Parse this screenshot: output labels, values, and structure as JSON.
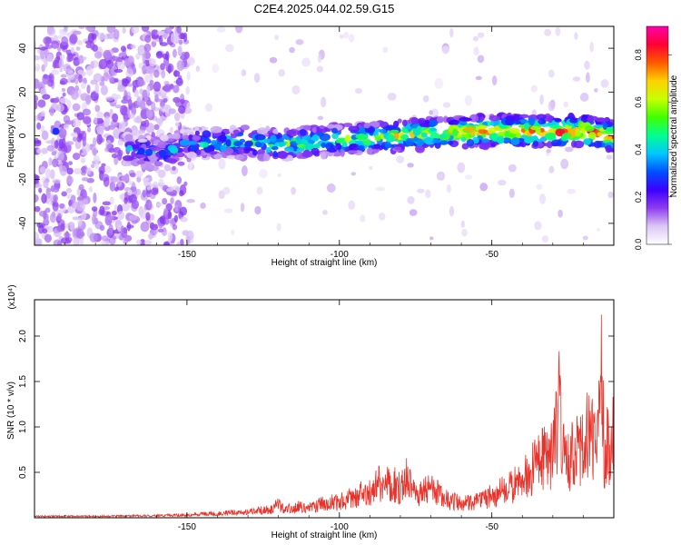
{
  "title": "C2E4.2025.044.02.59.G15",
  "chart_data": [
    {
      "type": "heatmap",
      "xlabel": "Height of straight line (km)",
      "ylabel": "Frequency (Hz)",
      "xlim": [
        -200,
        -10
      ],
      "ylim": [
        -50,
        50
      ],
      "x_ticks": [
        -150,
        -100,
        -50
      ],
      "y_ticks": [
        -40,
        -20,
        0,
        20,
        40
      ],
      "colorbar": {
        "label": "Normalized spectral amplitude",
        "range": [
          0.0,
          0.92
        ],
        "ticks": [
          "0.0",
          "0.2",
          "0.4",
          "0.6",
          "0.8"
        ],
        "colormap": [
          "#ffffff",
          "#dcc6f5",
          "#8e3cf0",
          "#3c00ff",
          "#0050ff",
          "#00c8ff",
          "#00ff90",
          "#40ff00",
          "#c8ff00",
          "#ffd000",
          "#ff5a00",
          "#ff0033",
          "#ff00aa"
        ]
      },
      "ridge": {
        "x": [
          -193,
          -180,
          -170,
          -160,
          -150,
          -140,
          -130,
          -120,
          -110,
          -100,
          -90,
          -80,
          -70,
          -60,
          -50,
          -40,
          -30,
          -20,
          -15,
          -12
        ],
        "y": [
          0,
          0,
          -6,
          -8,
          -4,
          -3,
          -3,
          -4,
          -3,
          -2,
          -1,
          0,
          1,
          2,
          2,
          2,
          2,
          2,
          1,
          0
        ]
      }
    },
    {
      "type": "line",
      "xlabel": "Height of straight line (km)",
      "ylabel": "SNR (10 * v/v)",
      "yunit": "(x10⁴)",
      "xlim": [
        -200,
        -10
      ],
      "ylim": [
        0,
        2.4
      ],
      "x_ticks": [
        -150,
        -100,
        -50
      ],
      "y_ticks": [
        0.5,
        1.0,
        1.5,
        2.0
      ],
      "color": "#e8322a",
      "series": [
        {
          "x": [
            -200,
            -180,
            -160,
            -150,
            -140,
            -130,
            -122,
            -120,
            -118,
            -115,
            -110,
            -105,
            -100,
            -95,
            -90,
            -88,
            -87,
            -86,
            -84,
            -80,
            -78,
            -75,
            -70,
            -65,
            -60,
            -55,
            -50,
            -45,
            -40,
            -35,
            -30,
            -28,
            -25,
            -22,
            -20,
            -18,
            -16,
            -15,
            -14,
            -13,
            -12,
            -11,
            -10
          ],
          "y": [
            0.02,
            0.02,
            0.03,
            0.04,
            0.06,
            0.08,
            0.12,
            0.2,
            0.1,
            0.15,
            0.14,
            0.2,
            0.22,
            0.3,
            0.35,
            0.42,
            0.6,
            0.35,
            0.5,
            0.4,
            0.55,
            0.3,
            0.4,
            0.25,
            0.2,
            0.22,
            0.3,
            0.4,
            0.5,
            0.75,
            0.9,
            1.5,
            0.75,
            1.0,
            0.95,
            1.25,
            1.1,
            1.2,
            2.35,
            0.7,
            1.1,
            0.8,
            1.3
          ]
        }
      ]
    }
  ]
}
